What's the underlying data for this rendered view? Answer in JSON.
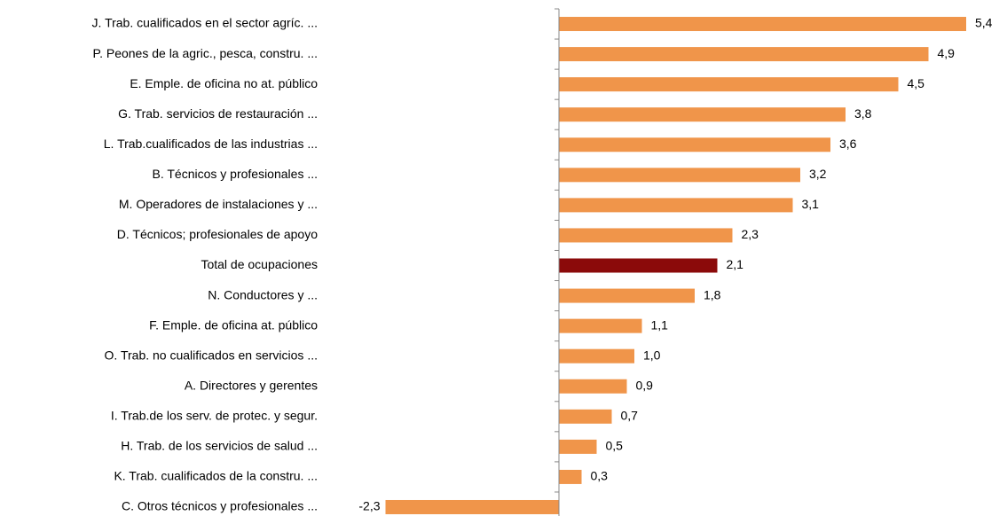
{
  "chart_data": {
    "type": "bar",
    "orientation": "horizontal",
    "categories": [
      "J. Trab. cualificados en el sector agríc. ...",
      "P. Peones de la agric., pesca, constru. ...",
      "E. Emple. de oficina no at. público",
      "G. Trab. servicios de restauración ...",
      "L. Trab.cualificados de las industrias ...",
      "B. Técnicos y profesionales  ...",
      "M. Operadores de instalaciones y ...",
      "D. Técnicos; profesionales de apoyo",
      "Total de ocupaciones",
      "N. Conductores y ...",
      "F. Emple. de oficina at. público",
      "O. Trab. no cualificados en servicios ...",
      "A. Directores y gerentes",
      "I. Trab.de los serv. de protec. y segur.",
      "H. Trab. de los servicios de salud ...",
      "K. Trab. cualificados de la constru. ...",
      "C. Otros técnicos y profesionales ..."
    ],
    "values": [
      5.4,
      4.9,
      4.5,
      3.8,
      3.6,
      3.2,
      3.1,
      2.3,
      2.1,
      1.8,
      1.1,
      1.0,
      0.9,
      0.7,
      0.5,
      0.3,
      -2.3
    ],
    "value_labels": [
      "5,4",
      "4,9",
      "4,5",
      "3,8",
      "3,6",
      "3,2",
      "3,1",
      "2,3",
      "2,1",
      "1,8",
      "1,1",
      "1,0",
      "0,9",
      "0,7",
      "0,5",
      "0,3",
      "-2,3"
    ],
    "colors": [
      "#f0954a",
      "#f0954a",
      "#f0954a",
      "#f0954a",
      "#f0954a",
      "#f0954a",
      "#f0954a",
      "#f0954a",
      "#8b0a0a",
      "#f0954a",
      "#f0954a",
      "#f0954a",
      "#f0954a",
      "#f0954a",
      "#f0954a",
      "#f0954a",
      "#f0954a"
    ],
    "xlim": [
      -2.5,
      5.5
    ]
  }
}
